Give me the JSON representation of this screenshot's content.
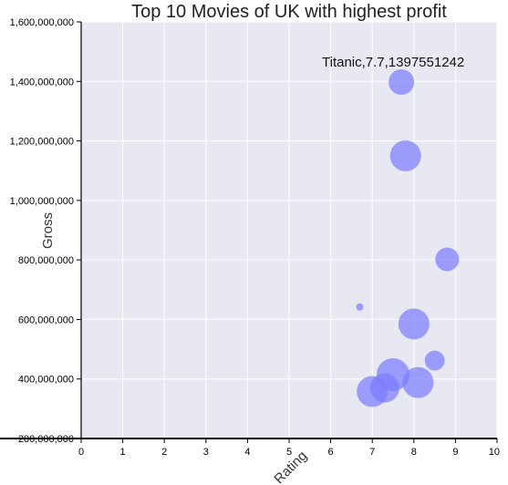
{
  "chart_data": {
    "type": "scatter",
    "title": "Top 10 Movies of UK with highest profit",
    "xlabel": "Rating",
    "ylabel": "Gross",
    "xlim": [
      0,
      10
    ],
    "ylim": [
      200000000,
      1600000000
    ],
    "x_ticks": [
      0,
      1,
      2,
      3,
      4,
      5,
      6,
      7,
      8,
      9,
      10
    ],
    "x_tick_labels": [
      "0",
      "1",
      "2",
      "3",
      "4",
      "5",
      "6",
      "7",
      "8",
      "9",
      "10"
    ],
    "y_ticks": [
      200000000,
      400000000,
      600000000,
      800000000,
      1000000000,
      1200000000,
      1400000000,
      1600000000
    ],
    "y_tick_labels": [
      "200,000,000",
      "400,000,000",
      "600,000,000",
      "800,000,000",
      "1,000,000,000",
      "1,200,000,000",
      "1,400,000,000",
      "1,600,000,000"
    ],
    "grid": true,
    "point_color": "#7b7bff",
    "background_color": "#e8e8f3",
    "points": [
      {
        "x": 7.7,
        "y": 1397551242,
        "r": 14
      },
      {
        "x": 7.8,
        "y": 1150000000,
        "r": 17
      },
      {
        "x": 8.8,
        "y": 802000000,
        "r": 13
      },
      {
        "x": 6.7,
        "y": 642000000,
        "r": 4
      },
      {
        "x": 8.0,
        "y": 585000000,
        "r": 17
      },
      {
        "x": 8.5,
        "y": 462000000,
        "r": 11
      },
      {
        "x": 7.5,
        "y": 415000000,
        "r": 18
      },
      {
        "x": 8.1,
        "y": 388000000,
        "r": 17
      },
      {
        "x": 7.3,
        "y": 370000000,
        "r": 16
      },
      {
        "x": 7.0,
        "y": 358000000,
        "r": 17
      }
    ],
    "annotation": {
      "text": "Titanic,7.7,1397551242",
      "x": 7.7,
      "y": 1397551242
    }
  }
}
